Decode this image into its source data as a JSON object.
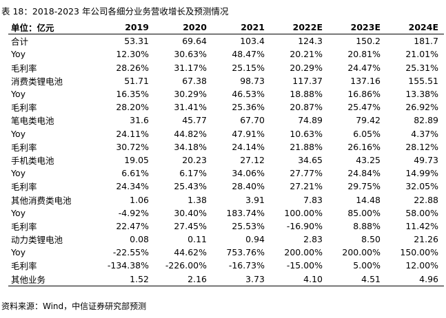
{
  "title": "表 18：2018-2023 年公司各细分业务营收增长及预测情况",
  "table": {
    "headers": [
      "单位：亿元",
      "2019",
      "2020",
      "2021",
      "2022E",
      "2023E",
      "2024E"
    ],
    "rows": [
      [
        "合计",
        "53.31",
        "69.64",
        "103.4",
        "124.3",
        "150.2",
        "181.7"
      ],
      [
        "Yoy",
        "12.30%",
        "30.63%",
        "48.47%",
        "20.21%",
        "20.81%",
        "21.01%"
      ],
      [
        "毛利率",
        "28.26%",
        "31.17%",
        "25.15%",
        "20.29%",
        "24.47%",
        "25.31%"
      ],
      [
        "消费类锂电池",
        "51.71",
        "67.38",
        "98.73",
        "117.37",
        "137.16",
        "155.51"
      ],
      [
        "Yoy",
        "16.35%",
        "30.29%",
        "46.53%",
        "18.88%",
        "16.86%",
        "13.38%"
      ],
      [
        "毛利率",
        "28.20%",
        "31.41%",
        "25.36%",
        "20.87%",
        "25.47%",
        "26.92%"
      ],
      [
        "笔电类电池",
        "31.6",
        "45.77",
        "67.70",
        "74.89",
        "79.42",
        "82.89"
      ],
      [
        "Yoy",
        "24.11%",
        "44.82%",
        "47.91%",
        "10.63%",
        "6.05%",
        "4.37%"
      ],
      [
        "毛利率",
        "30.72%",
        "34.18%",
        "24.14%",
        "21.88%",
        "26.16%",
        "28.12%"
      ],
      [
        "手机类电池",
        "19.05",
        "20.23",
        "27.12",
        "34.65",
        "43.25",
        "49.73"
      ],
      [
        "Yoy",
        "6.61%",
        "6.17%",
        "34.06%",
        "27.77%",
        "24.84%",
        "14.99%"
      ],
      [
        "毛利率",
        "24.34%",
        "25.43%",
        "28.40%",
        "27.21%",
        "29.75%",
        "32.05%"
      ],
      [
        "其他消费类电池",
        "1.06",
        "1.38",
        "3.91",
        "7.83",
        "14.48",
        "22.88"
      ],
      [
        "Yoy",
        "-4.92%",
        "30.40%",
        "183.74%",
        "100.00%",
        "85.00%",
        "58.00%"
      ],
      [
        "毛利率",
        "22.47%",
        "27.45%",
        "25.53%",
        "-16.90%",
        "8.88%",
        "11.42%"
      ],
      [
        "动力类锂电池",
        "0.08",
        "0.11",
        "0.94",
        "2.83",
        "8.50",
        "21.26"
      ],
      [
        "Yoy",
        "-22.55%",
        "44.62%",
        "753.76%",
        "200.00%",
        "200.00%",
        "150.00%"
      ],
      [
        "毛利率",
        "-134.38%",
        "-226.00%",
        "-16.73%",
        "-15.00%",
        "5.00%",
        "12.00%"
      ],
      [
        "其他业务",
        "1.52",
        "2.16",
        "3.73",
        "4.10",
        "4.51",
        "4.96"
      ]
    ]
  },
  "source": "资料来源：Wind，中信证券研究部预测"
}
